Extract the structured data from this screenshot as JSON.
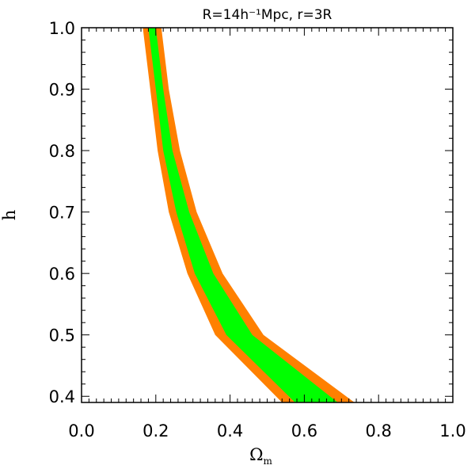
{
  "chart_data": {
    "type": "area",
    "title": "R=14h⁻¹Mpc, r=3R",
    "xlabel": "Ω",
    "xlabel_sub": "m",
    "ylabel": "h",
    "xlim": [
      0.0,
      1.0
    ],
    "ylim": [
      0.39,
      1.0
    ],
    "x_ticks": [
      "0.0",
      "0.2",
      "0.4",
      "0.6",
      "0.8",
      "1.0"
    ],
    "y_ticks": [
      "0.4",
      "0.5",
      "0.6",
      "0.7",
      "0.8",
      "0.9",
      "1.0"
    ],
    "grid": false,
    "series": [
      {
        "color": "#ff8000",
        "lower": [
          [
            0.165,
            1.0
          ],
          [
            0.185,
            0.9
          ],
          [
            0.205,
            0.8
          ],
          [
            0.235,
            0.7
          ],
          [
            0.285,
            0.6
          ],
          [
            0.36,
            0.5
          ],
          [
            0.54,
            0.39
          ]
        ],
        "upper": [
          [
            0.215,
            1.0
          ],
          [
            0.235,
            0.9
          ],
          [
            0.265,
            0.8
          ],
          [
            0.31,
            0.7
          ],
          [
            0.38,
            0.6
          ],
          [
            0.49,
            0.5
          ],
          [
            0.735,
            0.39
          ]
        ]
      },
      {
        "color": "#00ff00",
        "lower": [
          [
            0.18,
            1.0
          ],
          [
            0.2,
            0.9
          ],
          [
            0.22,
            0.8
          ],
          [
            0.255,
            0.7
          ],
          [
            0.305,
            0.6
          ],
          [
            0.39,
            0.5
          ],
          [
            0.575,
            0.39
          ]
        ],
        "upper": [
          [
            0.2,
            1.0
          ],
          [
            0.22,
            0.9
          ],
          [
            0.245,
            0.8
          ],
          [
            0.29,
            0.7
          ],
          [
            0.355,
            0.6
          ],
          [
            0.46,
            0.5
          ],
          [
            0.69,
            0.39
          ]
        ]
      }
    ]
  }
}
